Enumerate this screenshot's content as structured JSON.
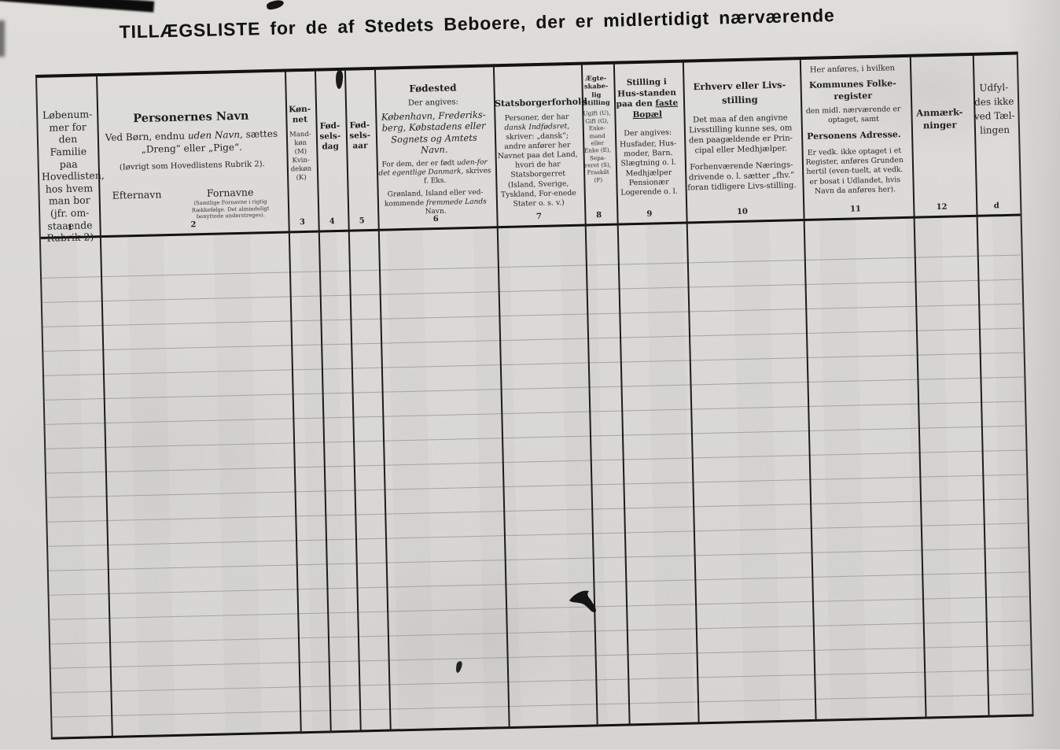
{
  "page": {
    "title": "TILLÆGSLISTE for de af Stedets Beboere, der er midlertidigt nærværende"
  },
  "columns": [
    {
      "num": "1",
      "text": "Løbenum-mer for den Familie paa Hovedlisten, hos hvem man bor (jfr. om-staaende Rubrik 2)"
    },
    {
      "num": "2",
      "title": "Personernes Navn",
      "p1a": "Ved Børn, endnu ",
      "p1b": "uden Navn",
      "p1c": ", sættes „Dreng“ eller „Pige“.",
      "p2": "(Iøvrigt som Hovedlistens Rubrik 2).",
      "efternavn": "Efternavn",
      "fornavne": "Fornavne",
      "fornavne_note": "(Samtlige Fornavne i rigtig Rækkefølge. Det almindeligt benyttede understreges)."
    },
    {
      "num": "3",
      "title": "Køn-net",
      "sub": "Mand-køn (M) Kvin-dekøn (K)"
    },
    {
      "num": "4",
      "title": "Fød-sels-dag"
    },
    {
      "num": "5",
      "title": "Fød-sels-aar"
    },
    {
      "num": "6",
      "title": "Fødested",
      "intro": "Der angives:",
      "main": "København, Frederiks-berg, Købstadens eller Sognets og Amtets Navn.",
      "note1a": "For dem, der er født ",
      "note1b": "uden-for det egentlige Danmark,",
      "note1c": " skrives f. Eks.",
      "note2a": "Grønland, Island eller ved-kommende ",
      "note2b": "fremmede Lands",
      "note2c": " Navn."
    },
    {
      "num": "7",
      "title": "Statsborgerforhold",
      "p1a": "Personer, der har ",
      "p1b": "dansk Indfødsret,",
      "p1c": " skriver: „dansk“; andre anfører her Navnet paa det Land, hvori de har Statsborgerret (Island, Sverige, Tyskland, For-enede Stater o. s. v.)"
    },
    {
      "num": "8",
      "title": "Ægte-skabe-lig Stilling",
      "sub": "Ugift (U), Gift (G), Enke-mand eller Enke (E), Sepa-reret (S), Fraskilt (F)"
    },
    {
      "num": "9",
      "t1": "Stilling i Hus-standen paa den ",
      "t2": "faste",
      "t3": "Bopæl",
      "intro": "Der angives:",
      "body": "Husfader, Hus-moder, Barn. Slægtning o. l. Medhjælper Pensionær Logerende o. l."
    },
    {
      "num": "10",
      "title": "Erhverv eller Livs-stilling",
      "p1": "Det maa af den angivne Livsstilling kunne ses, om den paagældende er Prin-cipal eller Medhjælper.",
      "p2": "Forhenværende Nærings-drivende o. l. sætter „fhv.“ foran tidligere Livs-stilling."
    },
    {
      "num": "11",
      "intro": "Her anføres, i hvilken",
      "title1": "Kommunes Folke-register",
      "mid": "den midl. nærværende er optaget, samt",
      "title2": "Personens Adresse.",
      "body": "Er vedk. ikke optaget i et Register, anføres Grunden hertil (even-tuelt, at vedk. er bosat i Udlandet, hvis Navn da anføres her)."
    },
    {
      "num": "12",
      "title": "Anmærk-ninger"
    },
    {
      "num": "d",
      "title": "Udfyl-des ikke ved Tæl-lingen"
    }
  ],
  "table": {
    "body_row_count": 20
  }
}
